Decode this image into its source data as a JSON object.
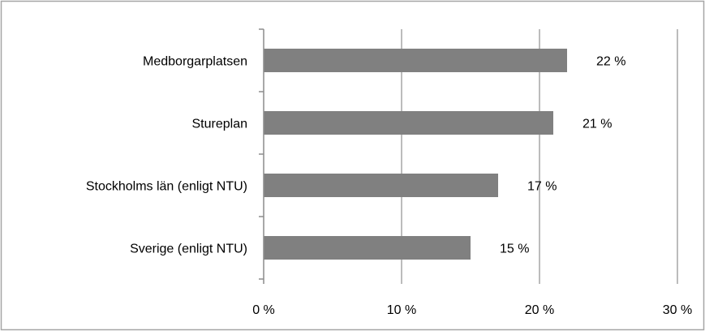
{
  "chart_data": {
    "type": "bar",
    "orientation": "horizontal",
    "categories": [
      "Medborgarplatsen",
      "Stureplan",
      "Stockholms län (enligt NTU)",
      "Sverige (enligt NTU)"
    ],
    "values": [
      22,
      21,
      17,
      15
    ],
    "value_labels": [
      "22 %",
      "21 %",
      "17 %",
      "15 %"
    ],
    "xlim": [
      0,
      30
    ],
    "x_ticks": [
      0,
      10,
      20,
      30
    ],
    "x_tick_labels": [
      "0 %",
      "10 %",
      "20 %",
      "30 %"
    ],
    "grid": "vertical",
    "legend": "none",
    "colors": {
      "bar": "#808080",
      "grid": "#a6a6a6",
      "axis": "#8c8c8c",
      "frame": "#a6a6a6"
    }
  }
}
